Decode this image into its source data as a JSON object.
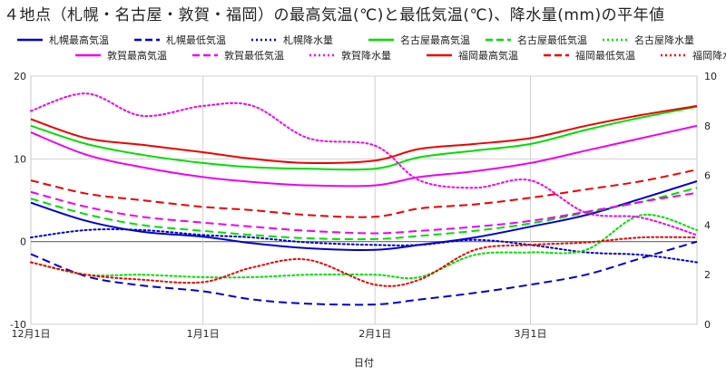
{
  "chart_data": {
    "type": "line",
    "title": "４地点（札幌・名古屋・敦賀・福岡）の最高気温(℃)と最低気温(℃)、降水量(mm)の平年値",
    "xlabel": "日付",
    "ylabel_left": "",
    "ylabel_right": "",
    "ylim_left": [
      -10,
      20
    ],
    "ylim_right": [
      0,
      10
    ],
    "x_ticks": [
      "12月1日",
      "1月1日",
      "2月1日",
      "3月1日"
    ],
    "y_ticks_left": [
      "-10",
      "0",
      "10",
      "20"
    ],
    "y_ticks_right": [
      "0",
      "2",
      "4",
      "6",
      "8",
      "10"
    ],
    "grid": true,
    "legend_position": "top",
    "x": [
      0,
      10,
      20,
      31,
      40,
      50,
      62,
      70,
      80,
      90,
      100,
      110,
      120
    ],
    "series": [
      {
        "name": "札幌最高気温",
        "axis": "left",
        "color": "#0000cc",
        "style": "solid",
        "values": [
          4.7,
          2.5,
          1.2,
          0.6,
          -0.2,
          -0.8,
          -1.0,
          -0.4,
          0.5,
          1.8,
          3.2,
          5.2,
          7.3
        ]
      },
      {
        "name": "札幌最低気温",
        "axis": "left",
        "color": "#0000cc",
        "style": "dash",
        "values": [
          -1.5,
          -4.2,
          -5.3,
          -6.0,
          -7.0,
          -7.5,
          -7.6,
          -7.0,
          -6.2,
          -5.2,
          -4.0,
          -2.0,
          0.0
        ]
      },
      {
        "name": "札幌降水量",
        "axis": "right",
        "color": "#0000cc",
        "style": "dot",
        "values": [
          3.5,
          3.8,
          3.8,
          3.6,
          3.5,
          3.3,
          3.2,
          3.2,
          3.4,
          3.2,
          2.9,
          2.8,
          2.5
        ]
      },
      {
        "name": "名古屋最高気温",
        "axis": "left",
        "color": "#00dd00",
        "style": "solid",
        "values": [
          14.0,
          11.8,
          10.5,
          9.5,
          9.0,
          8.8,
          8.8,
          10.2,
          11.0,
          11.8,
          13.5,
          15.0,
          16.3
        ]
      },
      {
        "name": "名古屋最低気温",
        "axis": "left",
        "color": "#00dd00",
        "style": "dash",
        "values": [
          5.2,
          3.3,
          2.0,
          1.3,
          0.8,
          0.4,
          0.3,
          0.7,
          1.3,
          2.2,
          3.5,
          4.8,
          6.5
        ]
      },
      {
        "name": "名古屋降水量",
        "axis": "right",
        "color": "#00dd00",
        "style": "dot",
        "values": [
          2.5,
          2.0,
          2.0,
          1.9,
          1.9,
          2.0,
          2.0,
          1.9,
          2.8,
          2.9,
          3.0,
          4.4,
          3.8
        ]
      },
      {
        "name": "敦賀最高気温",
        "axis": "left",
        "color": "#ee00ee",
        "style": "solid",
        "values": [
          13.2,
          10.5,
          9.0,
          7.8,
          7.2,
          6.8,
          6.8,
          7.8,
          8.5,
          9.5,
          11.0,
          12.5,
          14.0
        ]
      },
      {
        "name": "敦賀最低気温",
        "axis": "left",
        "color": "#ee00ee",
        "style": "dash",
        "values": [
          6.0,
          4.2,
          3.0,
          2.3,
          1.8,
          1.3,
          1.0,
          1.3,
          1.8,
          2.5,
          3.6,
          4.8,
          5.9
        ]
      },
      {
        "name": "敦賀降水量",
        "axis": "right",
        "color": "#ee00ee",
        "style": "dot",
        "values": [
          8.6,
          9.3,
          8.4,
          8.8,
          8.8,
          7.5,
          7.2,
          5.8,
          5.5,
          5.8,
          4.5,
          4.3,
          3.6
        ]
      },
      {
        "name": "福岡最高気温",
        "axis": "left",
        "color": "#ee0000",
        "style": "solid",
        "values": [
          14.8,
          12.5,
          11.7,
          10.8,
          10.0,
          9.5,
          9.8,
          11.2,
          11.8,
          12.5,
          14.0,
          15.3,
          16.4
        ]
      },
      {
        "name": "福岡最低気温",
        "axis": "left",
        "color": "#ee0000",
        "style": "dash",
        "values": [
          7.4,
          5.8,
          5.0,
          4.2,
          3.8,
          3.2,
          3.0,
          4.0,
          4.5,
          5.3,
          6.3,
          7.3,
          8.7
        ]
      },
      {
        "name": "福岡降水量",
        "axis": "right",
        "color": "#ee0000",
        "style": "dot",
        "values": [
          2.5,
          2.0,
          1.8,
          1.7,
          2.3,
          2.6,
          1.6,
          1.8,
          3.0,
          3.2,
          3.3,
          3.5,
          3.5
        ]
      }
    ]
  }
}
